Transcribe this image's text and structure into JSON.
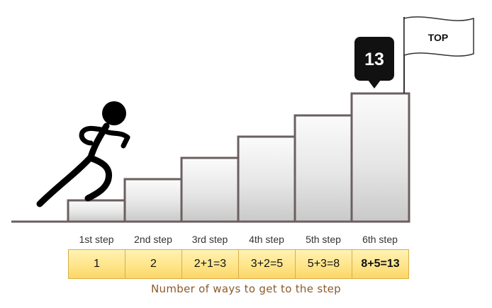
{
  "staircase": {
    "steps": [
      {
        "label": "1st step",
        "ways": "1"
      },
      {
        "label": "2nd step",
        "ways": "2"
      },
      {
        "label": "3rd step",
        "ways": "2+1=3"
      },
      {
        "label": "4th step",
        "ways": "3+2=5"
      },
      {
        "label": "5th step",
        "ways": "5+3=8"
      },
      {
        "label": "6th step",
        "ways": "8+5=13"
      }
    ],
    "top_count": "13",
    "flag_text": "TOP",
    "caption": "Number of ways to get to the step"
  },
  "colors": {
    "step_border": "#6b5f5f",
    "table_fill": "#ffe58a",
    "table_border": "#d7ae4c",
    "caption": "#8b5a2b",
    "badge": "#111111"
  }
}
